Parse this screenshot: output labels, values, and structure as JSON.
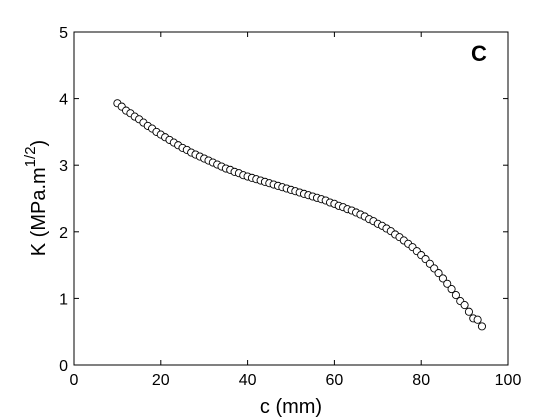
{
  "chart_data": {
    "type": "scatter",
    "title": "",
    "panel_label": "C",
    "xlabel": "c (mm)",
    "ylabel_main": "K (MPa.m",
    "ylabel_sup": "1/2",
    "ylabel_close": ")",
    "xlim": [
      0,
      100
    ],
    "ylim": [
      0,
      5
    ],
    "xticks": [
      0,
      20,
      40,
      60,
      80,
      100
    ],
    "yticks": [
      0,
      1,
      2,
      3,
      4,
      5
    ],
    "grid": false,
    "marker": "open-circle",
    "x": [
      10,
      11,
      12,
      13,
      14,
      15,
      16,
      17,
      18,
      19,
      20,
      21,
      22,
      23,
      24,
      25,
      26,
      27,
      28,
      29,
      30,
      31,
      32,
      33,
      34,
      35,
      36,
      37,
      38,
      39,
      40,
      41,
      42,
      43,
      44,
      45,
      46,
      47,
      48,
      49,
      50,
      51,
      52,
      53,
      54,
      55,
      56,
      57,
      58,
      59,
      60,
      61,
      62,
      63,
      64,
      65,
      66,
      67,
      68,
      69,
      70,
      71,
      72,
      73,
      74,
      75,
      76,
      77,
      78,
      79,
      80,
      81,
      82,
      83,
      84,
      85,
      86,
      87,
      88,
      89,
      90,
      91,
      92,
      93,
      94
    ],
    "y": [
      3.93,
      3.88,
      3.82,
      3.78,
      3.73,
      3.69,
      3.64,
      3.59,
      3.55,
      3.5,
      3.46,
      3.42,
      3.38,
      3.34,
      3.3,
      3.26,
      3.23,
      3.19,
      3.16,
      3.13,
      3.1,
      3.07,
      3.04,
      3.01,
      2.98,
      2.95,
      2.93,
      2.9,
      2.88,
      2.85,
      2.83,
      2.81,
      2.79,
      2.77,
      2.75,
      2.73,
      2.71,
      2.69,
      2.67,
      2.65,
      2.63,
      2.61,
      2.59,
      2.57,
      2.55,
      2.53,
      2.51,
      2.49,
      2.47,
      2.44,
      2.42,
      2.39,
      2.37,
      2.34,
      2.32,
      2.29,
      2.26,
      2.23,
      2.19,
      2.16,
      2.12,
      2.09,
      2.05,
      2.01,
      1.96,
      1.92,
      1.87,
      1.82,
      1.77,
      1.71,
      1.65,
      1.59,
      1.52,
      1.45,
      1.38,
      1.3,
      1.22,
      1.14,
      1.05,
      0.96,
      0.9,
      0.8,
      0.7,
      0.68,
      0.58
    ]
  }
}
